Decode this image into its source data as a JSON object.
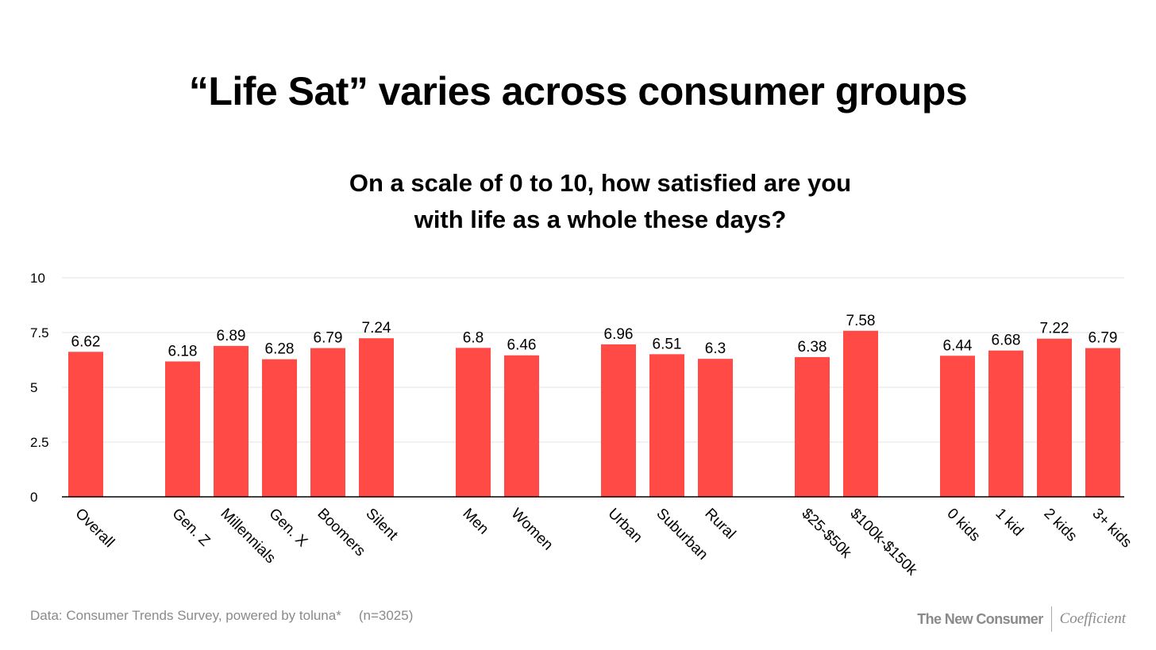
{
  "chart_data": {
    "type": "bar",
    "title": "“Life Sat” varies across consumer groups",
    "subtitle_lines": [
      "On a scale of 0 to 10, how satisfied are you",
      "with life as a whole these days?"
    ],
    "categories": [
      "Overall",
      null,
      "Gen. Z",
      "Millennials",
      "Gen. X",
      "Boomers",
      "Silent",
      null,
      "Men",
      "Women",
      null,
      "Urban",
      "Suburban",
      "Rural",
      null,
      "$25-$50k",
      "$100k-$150k",
      null,
      "0 kids",
      "1 kid",
      "2 kids",
      "3+ kids"
    ],
    "values": [
      6.62,
      null,
      6.18,
      6.89,
      6.28,
      6.79,
      7.24,
      null,
      6.8,
      6.46,
      null,
      6.96,
      6.51,
      6.3,
      null,
      6.38,
      7.58,
      null,
      6.44,
      6.68,
      7.22,
      6.79
    ],
    "value_labels": [
      "6.62",
      null,
      "6.18",
      "6.89",
      "6.28",
      "6.79",
      "7.24",
      null,
      "6.8",
      "6.46",
      null,
      "6.96",
      "6.51",
      "6.3",
      null,
      "6.38",
      "7.58",
      null,
      "6.44",
      "6.68",
      "7.22",
      "6.79"
    ],
    "ylim": [
      0,
      10
    ],
    "yticks": [
      0,
      2.5,
      5,
      7.5,
      10
    ],
    "ytick_labels": [
      "0",
      "2.5",
      "5",
      "7.5",
      "10"
    ],
    "grid": true,
    "bar_color": "#ff4a45",
    "xlabel": "",
    "ylabel": ""
  },
  "footer": {
    "source": "Data: Consumer Trends Survey, powered by toluna*",
    "n": "(n=3025)",
    "brand1": "The New Consumer",
    "brand2": "Coefficient"
  }
}
